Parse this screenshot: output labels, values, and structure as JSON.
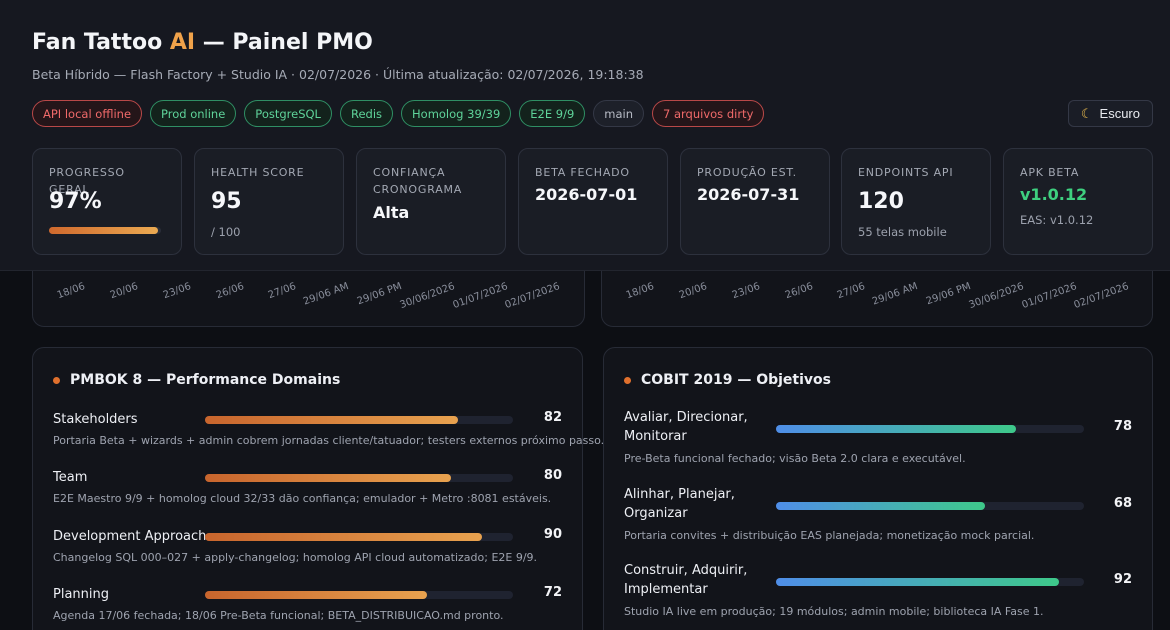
{
  "header": {
    "title_main": "Fan Tattoo ",
    "title_accent": "AI",
    "title_rest": " — Painel PMO",
    "subtitle": "Beta Híbrido — Flash Factory + Studio IA · 02/07/2026 · Última atualização: 02/07/2026, 19:18:38",
    "chips": [
      {
        "label": "API local offline",
        "status": "red"
      },
      {
        "label": "Prod online",
        "status": "green"
      },
      {
        "label": "PostgreSQL",
        "status": "green"
      },
      {
        "label": "Redis",
        "status": "green"
      },
      {
        "label": "Homolog 39/39",
        "status": "green"
      },
      {
        "label": "E2E 9/9",
        "status": "green"
      },
      {
        "label": "main",
        "status": "neutral"
      },
      {
        "label": "7 arquivos dirty",
        "status": "red"
      }
    ],
    "theme_icon": "moon-icon",
    "theme_label": "Escuro"
  },
  "kpis": {
    "progress": {
      "label": "Progresso geral",
      "value": "97%",
      "percent": 97
    },
    "health": {
      "label": "Health score",
      "value": "95",
      "sub": "/ 100"
    },
    "confidence": {
      "label": "Confiança cronograma",
      "value": "Alta"
    },
    "beta": {
      "label": "Beta fechado",
      "value": "2026-07-01"
    },
    "production": {
      "label": "Produção est.",
      "value": "2026-07-31"
    },
    "endpoints": {
      "label": "Endpoints API",
      "value": "120",
      "sub": "55 telas mobile"
    },
    "apk": {
      "label": "APK Beta",
      "value": "v1.0.12",
      "sub": "EAS: v1.0.12"
    }
  },
  "charts": {
    "left_ticks": [
      "18/06",
      "20/06",
      "23/06",
      "26/06",
      "27/06",
      "29/06 AM",
      "29/06 PM",
      "30/06/2026",
      "01/07/2026",
      "02/07/2026"
    ],
    "right_ticks": [
      "18/06",
      "20/06",
      "23/06",
      "26/06",
      "27/06",
      "29/06 AM",
      "29/06 PM",
      "30/06/2026",
      "01/07/2026",
      "02/07/2026"
    ]
  },
  "pmbok": {
    "title": "PMBOK 8 — Performance Domains",
    "items": [
      {
        "label": "Stakeholders",
        "score": 82,
        "note": "Portaria Beta + wizards + admin cobrem jornadas cliente/tatuador; testers externos próximo passo."
      },
      {
        "label": "Team",
        "score": 80,
        "note": "E2E Maestro 9/9 + homolog cloud 32/33 dão confiança; emulador + Metro :8081 estáveis."
      },
      {
        "label": "Development Approach",
        "score": 90,
        "note": "Changelog SQL 000–027 + apply-changelog; homolog API cloud automatizado; E2E 9/9."
      },
      {
        "label": "Planning",
        "score": 72,
        "note": "Agenda 17/06 fechada; 18/06 Pre-Beta funcional; BETA_DISTRIBUICAO.md pronto."
      }
    ]
  },
  "cobit": {
    "title": "COBIT 2019 — Objetivos",
    "items": [
      {
        "label_1": "Avaliar, Direcionar,",
        "label_2": "Monitorar",
        "score": 78,
        "note": "Pre-Beta funcional fechado; visão Beta 2.0 clara e executável."
      },
      {
        "label_1": "Alinhar, Planejar,",
        "label_2": "Organizar",
        "score": 68,
        "note": "Portaria convites + distribuição EAS planejada; monetização mock parcial."
      },
      {
        "label_1": "Construir, Adquirir,",
        "label_2": "Implementar",
        "score": 92,
        "note": "Studio IA live em produção; 19 módulos; admin mobile; biblioteca IA Fase 1."
      }
    ]
  },
  "colors": {
    "accent": "#f0a24a",
    "ok": "#3ed07f",
    "error": "#f06a6a"
  }
}
